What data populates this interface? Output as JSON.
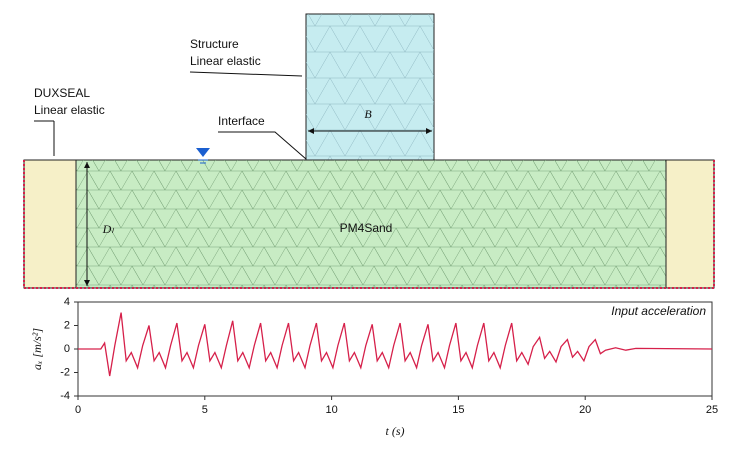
{
  "labels": {
    "structure": "Structure",
    "structure_model": "Linear elastic",
    "duxseal": "DUXSEAL",
    "duxseal_model": "Linear elastic",
    "interface": "Interface",
    "width": "B",
    "depth": "Dₗ",
    "soil": "PM4Sand"
  },
  "chart_data": {
    "type": "line",
    "annotation": "Input acceleration",
    "x_label": "t (s)",
    "y_label": "aₓ [m/s²]",
    "xlim": [
      0,
      25
    ],
    "xticks": [
      0,
      5,
      10,
      15,
      20,
      25
    ],
    "ylim": [
      -4,
      4
    ],
    "yticks": [
      -4,
      -2,
      0,
      2,
      4
    ],
    "x": [
      0,
      0.9,
      1.05,
      1.25,
      1.45,
      1.7,
      1.9,
      2.1,
      2.35,
      2.55,
      2.8,
      3.0,
      3.2,
      3.45,
      3.65,
      3.9,
      4.1,
      4.3,
      4.55,
      4.75,
      5.0,
      5.2,
      5.4,
      5.65,
      5.85,
      6.1,
      6.3,
      6.5,
      6.75,
      6.95,
      7.2,
      7.4,
      7.6,
      7.85,
      8.05,
      8.3,
      8.5,
      8.7,
      8.95,
      9.15,
      9.4,
      9.6,
      9.8,
      10.05,
      10.25,
      10.5,
      10.7,
      10.9,
      11.15,
      11.35,
      11.6,
      11.8,
      12.0,
      12.25,
      12.45,
      12.7,
      12.9,
      13.1,
      13.35,
      13.55,
      13.8,
      14.0,
      14.2,
      14.45,
      14.65,
      14.9,
      15.1,
      15.3,
      15.55,
      15.75,
      16.0,
      16.2,
      16.4,
      16.65,
      16.85,
      17.1,
      17.3,
      17.5,
      17.75,
      17.95,
      18.2,
      18.4,
      18.6,
      18.85,
      19.05,
      19.3,
      19.5,
      19.7,
      19.95,
      20.15,
      20.4,
      20.6,
      20.8,
      21.2,
      21.6,
      22,
      25
    ],
    "series": [
      {
        "name": "Input acceleration",
        "color": "#d6204a",
        "values": [
          0,
          0,
          0.5,
          -2.3,
          0.3,
          3.1,
          -1.0,
          -0.3,
          -1.6,
          0.3,
          2.0,
          -1.0,
          -0.3,
          -1.6,
          0.3,
          2.2,
          -1.0,
          -0.3,
          -1.6,
          0.3,
          2.1,
          -1.0,
          -0.3,
          -1.6,
          0.3,
          2.4,
          -1.0,
          -0.3,
          -1.6,
          0.3,
          2.2,
          -1.0,
          -0.3,
          -1.6,
          0.3,
          2.2,
          -1.0,
          -0.3,
          -1.6,
          0.3,
          2.2,
          -1.0,
          -0.3,
          -1.6,
          0.3,
          2.2,
          -1.0,
          -0.3,
          -1.6,
          0.3,
          2.1,
          -1.0,
          -0.3,
          -1.6,
          0.3,
          2.2,
          -1.0,
          -0.3,
          -1.6,
          0.3,
          2.1,
          -1.0,
          -0.3,
          -1.6,
          0.3,
          2.2,
          -1.0,
          -0.3,
          -1.6,
          0.3,
          2.2,
          -1.0,
          -0.3,
          -1.6,
          0.3,
          2.2,
          -1.0,
          -0.3,
          -1.3,
          0.2,
          1.0,
          -0.8,
          -0.2,
          -1.1,
          0.2,
          0.8,
          -0.7,
          -0.2,
          -1.0,
          0.2,
          0.8,
          -0.4,
          -0.1,
          0.1,
          -0.1,
          0.05,
          0
        ]
      }
    ]
  }
}
